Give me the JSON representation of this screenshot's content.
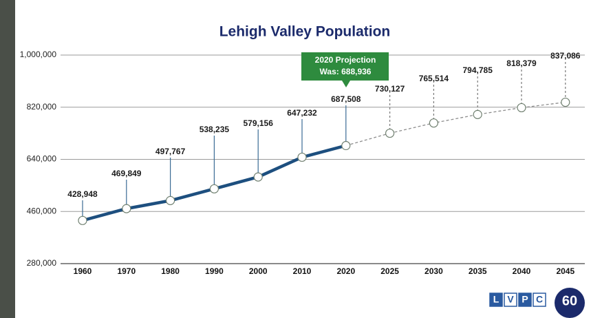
{
  "chart_data": {
    "type": "line",
    "title": "Lehigh Valley Population",
    "categories": [
      "1960",
      "1970",
      "1980",
      "1990",
      "2000",
      "2010",
      "2020",
      "2025",
      "2030",
      "2035",
      "2040",
      "2045"
    ],
    "series": [
      {
        "color": "#1d4f7f",
        "dash": false,
        "values": [
          428948,
          469849,
          497767,
          538235,
          579156,
          647232,
          687508,
          null,
          null,
          null,
          null,
          null
        ],
        "value_labels": [
          "428,948",
          "469,849",
          "497,767",
          "538,235",
          "579,156",
          "647,232",
          "687,508",
          null,
          null,
          null,
          null,
          null
        ]
      },
      {
        "color": "#8c8c8c",
        "dash": true,
        "values": [
          null,
          null,
          null,
          null,
          null,
          null,
          null,
          730127,
          765514,
          794785,
          818379,
          837086
        ],
        "value_labels": [
          null,
          null,
          null,
          null,
          null,
          null,
          null,
          "730,127",
          "765,514",
          "794,785",
          "818,379",
          "837,086"
        ]
      }
    ],
    "ylim": [
      280000,
      1000000
    ],
    "yticks": [
      {
        "value": 280000,
        "label": "280,000"
      },
      {
        "value": 460000,
        "label": "460,000"
      },
      {
        "value": 640000,
        "label": "640,000"
      },
      {
        "value": 820000,
        "label": "820,000"
      },
      {
        "value": 1000000,
        "label": "1,000,000"
      }
    ],
    "grid": true,
    "annotation": {
      "lines": [
        "2020 Projection",
        "Was: 688,936"
      ],
      "color": "#2e8b3e"
    }
  },
  "logo": {
    "letters": [
      "L",
      "V",
      "P",
      "C"
    ],
    "badge": "60"
  }
}
